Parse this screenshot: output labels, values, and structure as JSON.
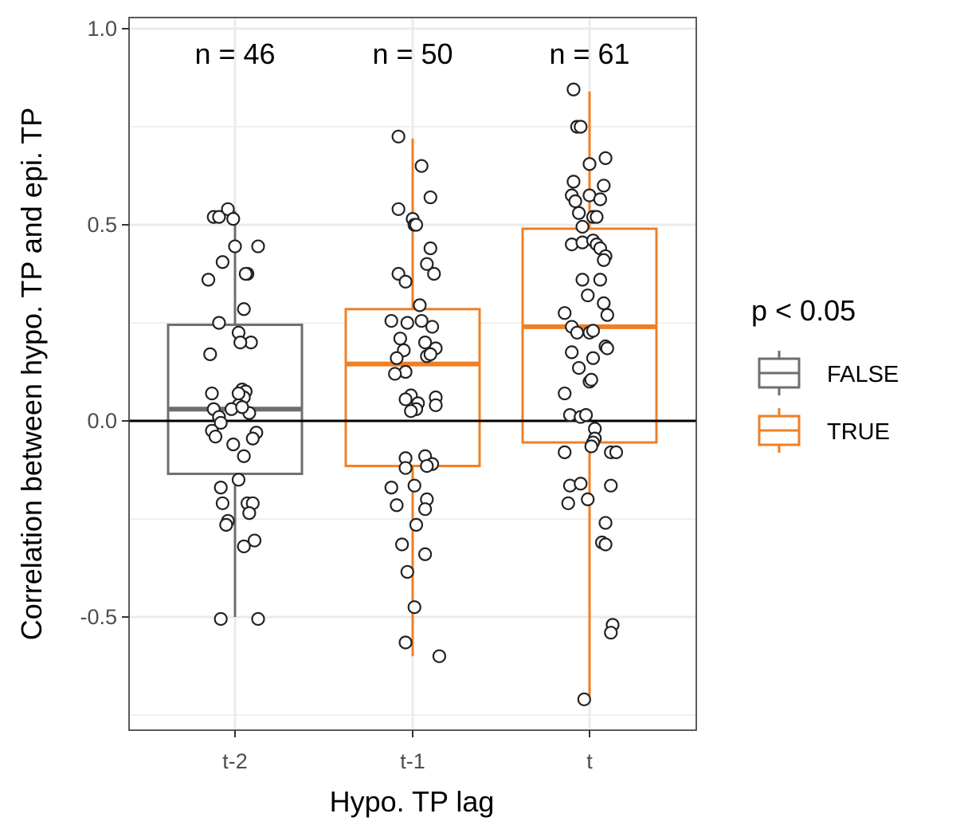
{
  "chart_data": {
    "type": "box",
    "xlabel": "Hypo. TP lag",
    "ylabel": "Correlation between hypo. TP and epi. TP",
    "categories": [
      "t-2",
      "t-1",
      "t"
    ],
    "ylim": [
      -0.75,
      1.02
    ],
    "y_ticks": [
      "1.0",
      "0.5",
      "0.0",
      "-0.5"
    ],
    "grid": true,
    "reference_line_y": 0,
    "legend": {
      "title": "p < 0.05",
      "position": "right",
      "entries": [
        {
          "label": "FALSE",
          "color": "#6e6e6e"
        },
        {
          "label": "TRUE",
          "color": "#f07f23"
        }
      ]
    },
    "groups": [
      {
        "category": "t-2",
        "n_label": "n = 46",
        "significant": "FALSE",
        "color": "#6e6e6e",
        "whisker_low": -0.5,
        "q1": -0.135,
        "median": 0.03,
        "q3": 0.245,
        "whisker_high": 0.535,
        "points": [
          {
            "dx": -0.12,
            "y": 0.52
          },
          {
            "dx": -0.09,
            "y": 0.52
          },
          {
            "dx": -0.04,
            "y": 0.54
          },
          {
            "dx": -0.01,
            "y": 0.515
          },
          {
            "dx": -0.15,
            "y": 0.36
          },
          {
            "dx": 0.0,
            "y": 0.445
          },
          {
            "dx": 0.13,
            "y": 0.445
          },
          {
            "dx": -0.07,
            "y": 0.405
          },
          {
            "dx": 0.07,
            "y": 0.375
          },
          {
            "dx": 0.06,
            "y": 0.375
          },
          {
            "dx": 0.05,
            "y": 0.285
          },
          {
            "dx": -0.09,
            "y": 0.25
          },
          {
            "dx": 0.02,
            "y": 0.225
          },
          {
            "dx": 0.09,
            "y": 0.2
          },
          {
            "dx": 0.03,
            "y": 0.2
          },
          {
            "dx": -0.14,
            "y": 0.17
          },
          {
            "dx": -0.13,
            "y": 0.07
          },
          {
            "dx": 0.04,
            "y": 0.08
          },
          {
            "dx": 0.06,
            "y": 0.075
          },
          {
            "dx": 0.05,
            "y": 0.06
          },
          {
            "dx": -0.12,
            "y": 0.03
          },
          {
            "dx": 0.02,
            "y": 0.04
          },
          {
            "dx": -0.02,
            "y": 0.03
          },
          {
            "dx": 0.08,
            "y": 0.02
          },
          {
            "dx": -0.09,
            "y": 0.01
          },
          {
            "dx": -0.08,
            "y": -0.005
          },
          {
            "dx": -0.13,
            "y": -0.025
          },
          {
            "dx": -0.11,
            "y": -0.04
          },
          {
            "dx": 0.12,
            "y": -0.03
          },
          {
            "dx": 0.1,
            "y": -0.045
          },
          {
            "dx": -0.01,
            "y": -0.06
          },
          {
            "dx": 0.05,
            "y": -0.09
          },
          {
            "dx": 0.02,
            "y": -0.15
          },
          {
            "dx": -0.08,
            "y": -0.17
          },
          {
            "dx": 0.07,
            "y": -0.21
          },
          {
            "dx": -0.07,
            "y": -0.21
          },
          {
            "dx": 0.1,
            "y": -0.21
          },
          {
            "dx": 0.08,
            "y": -0.235
          },
          {
            "dx": -0.04,
            "y": -0.255
          },
          {
            "dx": -0.05,
            "y": -0.265
          },
          {
            "dx": 0.11,
            "y": -0.305
          },
          {
            "dx": 0.05,
            "y": -0.32
          },
          {
            "dx": -0.08,
            "y": -0.505
          },
          {
            "dx": 0.13,
            "y": -0.505
          },
          {
            "dx": 0.02,
            "y": 0.07
          },
          {
            "dx": 0.04,
            "y": 0.035
          }
        ]
      },
      {
        "category": "t-1",
        "n_label": "n = 50",
        "significant": "TRUE",
        "color": "#f07f23",
        "whisker_low": -0.6,
        "q1": -0.115,
        "median": 0.145,
        "q3": 0.285,
        "whisker_high": 0.72,
        "points": [
          {
            "dx": -0.08,
            "y": 0.725
          },
          {
            "dx": 0.05,
            "y": 0.65
          },
          {
            "dx": 0.1,
            "y": 0.57
          },
          {
            "dx": -0.08,
            "y": 0.54
          },
          {
            "dx": -0.0,
            "y": 0.515
          },
          {
            "dx": 0.01,
            "y": 0.5
          },
          {
            "dx": 0.02,
            "y": 0.5
          },
          {
            "dx": 0.1,
            "y": 0.44
          },
          {
            "dx": 0.08,
            "y": 0.4
          },
          {
            "dx": -0.08,
            "y": 0.375
          },
          {
            "dx": 0.12,
            "y": 0.375
          },
          {
            "dx": -0.04,
            "y": 0.355
          },
          {
            "dx": 0.04,
            "y": 0.295
          },
          {
            "dx": -0.12,
            "y": 0.255
          },
          {
            "dx": 0.05,
            "y": 0.255
          },
          {
            "dx": -0.03,
            "y": 0.25
          },
          {
            "dx": 0.11,
            "y": 0.24
          },
          {
            "dx": -0.07,
            "y": 0.21
          },
          {
            "dx": 0.07,
            "y": 0.2
          },
          {
            "dx": 0.13,
            "y": 0.185
          },
          {
            "dx": -0.05,
            "y": 0.18
          },
          {
            "dx": -0.09,
            "y": 0.16
          },
          {
            "dx": 0.08,
            "y": 0.165
          },
          {
            "dx": 0.1,
            "y": 0.17
          },
          {
            "dx": -0.04,
            "y": 0.125
          },
          {
            "dx": -0.1,
            "y": 0.12
          },
          {
            "dx": 0.13,
            "y": 0.06
          },
          {
            "dx": -0.01,
            "y": 0.065
          },
          {
            "dx": -0.04,
            "y": 0.055
          },
          {
            "dx": 0.03,
            "y": 0.045
          },
          {
            "dx": 0.13,
            "y": 0.04
          },
          {
            "dx": 0.02,
            "y": 0.03
          },
          {
            "dx": -0.01,
            "y": 0.025
          },
          {
            "dx": -0.04,
            "y": -0.095
          },
          {
            "dx": 0.07,
            "y": -0.09
          },
          {
            "dx": 0.11,
            "y": -0.11
          },
          {
            "dx": -0.04,
            "y": -0.12
          },
          {
            "dx": -0.12,
            "y": -0.17
          },
          {
            "dx": 0.01,
            "y": -0.165
          },
          {
            "dx": 0.08,
            "y": -0.2
          },
          {
            "dx": -0.09,
            "y": -0.215
          },
          {
            "dx": 0.07,
            "y": -0.225
          },
          {
            "dx": 0.02,
            "y": -0.265
          },
          {
            "dx": -0.06,
            "y": -0.315
          },
          {
            "dx": 0.07,
            "y": -0.34
          },
          {
            "dx": -0.03,
            "y": -0.385
          },
          {
            "dx": 0.01,
            "y": -0.475
          },
          {
            "dx": -0.04,
            "y": -0.565
          },
          {
            "dx": 0.15,
            "y": -0.6
          },
          {
            "dx": 0.08,
            "y": -0.115
          }
        ]
      },
      {
        "category": "t",
        "n_label": "n = 61",
        "significant": "TRUE",
        "color": "#f07f23",
        "whisker_low": -0.7,
        "q1": -0.055,
        "median": 0.24,
        "q3": 0.49,
        "whisker_high": 0.84,
        "points": [
          {
            "dx": -0.09,
            "y": 0.845
          },
          {
            "dx": -0.07,
            "y": 0.75
          },
          {
            "dx": -0.05,
            "y": 0.75
          },
          {
            "dx": 0.09,
            "y": 0.67
          },
          {
            "dx": 0.0,
            "y": 0.655
          },
          {
            "dx": -0.09,
            "y": 0.61
          },
          {
            "dx": 0.08,
            "y": 0.6
          },
          {
            "dx": -0.1,
            "y": 0.575
          },
          {
            "dx": 0.0,
            "y": 0.575
          },
          {
            "dx": -0.08,
            "y": 0.56
          },
          {
            "dx": 0.06,
            "y": 0.565
          },
          {
            "dx": -0.06,
            "y": 0.53
          },
          {
            "dx": 0.02,
            "y": 0.52
          },
          {
            "dx": 0.04,
            "y": 0.52
          },
          {
            "dx": -0.04,
            "y": 0.495
          },
          {
            "dx": -0.1,
            "y": 0.45
          },
          {
            "dx": -0.04,
            "y": 0.455
          },
          {
            "dx": 0.02,
            "y": 0.46
          },
          {
            "dx": 0.04,
            "y": 0.45
          },
          {
            "dx": 0.06,
            "y": 0.44
          },
          {
            "dx": 0.09,
            "y": 0.42
          },
          {
            "dx": 0.08,
            "y": 0.41
          },
          {
            "dx": -0.04,
            "y": 0.36
          },
          {
            "dx": 0.06,
            "y": 0.36
          },
          {
            "dx": -0.01,
            "y": 0.32
          },
          {
            "dx": 0.08,
            "y": 0.3
          },
          {
            "dx": -0.14,
            "y": 0.275
          },
          {
            "dx": 0.1,
            "y": 0.27
          },
          {
            "dx": -0.1,
            "y": 0.24
          },
          {
            "dx": -0.07,
            "y": 0.225
          },
          {
            "dx": 0.0,
            "y": 0.225
          },
          {
            "dx": 0.02,
            "y": 0.23
          },
          {
            "dx": 0.09,
            "y": 0.19
          },
          {
            "dx": 0.1,
            "y": 0.185
          },
          {
            "dx": -0.1,
            "y": 0.175
          },
          {
            "dx": 0.02,
            "y": 0.16
          },
          {
            "dx": -0.06,
            "y": 0.135
          },
          {
            "dx": 0.0,
            "y": 0.1
          },
          {
            "dx": 0.01,
            "y": 0.105
          },
          {
            "dx": -0.14,
            "y": 0.07
          },
          {
            "dx": -0.11,
            "y": 0.015
          },
          {
            "dx": -0.05,
            "y": 0.01
          },
          {
            "dx": -0.02,
            "y": 0.015
          },
          {
            "dx": 0.03,
            "y": -0.02
          },
          {
            "dx": 0.03,
            "y": -0.045
          },
          {
            "dx": 0.02,
            "y": -0.055
          },
          {
            "dx": 0.01,
            "y": -0.065
          },
          {
            "dx": -0.14,
            "y": -0.08
          },
          {
            "dx": 0.12,
            "y": -0.08
          },
          {
            "dx": 0.15,
            "y": -0.08
          },
          {
            "dx": -0.11,
            "y": -0.165
          },
          {
            "dx": -0.05,
            "y": -0.16
          },
          {
            "dx": 0.12,
            "y": -0.165
          },
          {
            "dx": -0.12,
            "y": -0.21
          },
          {
            "dx": -0.01,
            "y": -0.2
          },
          {
            "dx": 0.09,
            "y": -0.26
          },
          {
            "dx": 0.07,
            "y": -0.31
          },
          {
            "dx": 0.09,
            "y": -0.315
          },
          {
            "dx": 0.13,
            "y": -0.52
          },
          {
            "dx": 0.12,
            "y": -0.54
          },
          {
            "dx": -0.03,
            "y": -0.71
          }
        ]
      }
    ]
  }
}
